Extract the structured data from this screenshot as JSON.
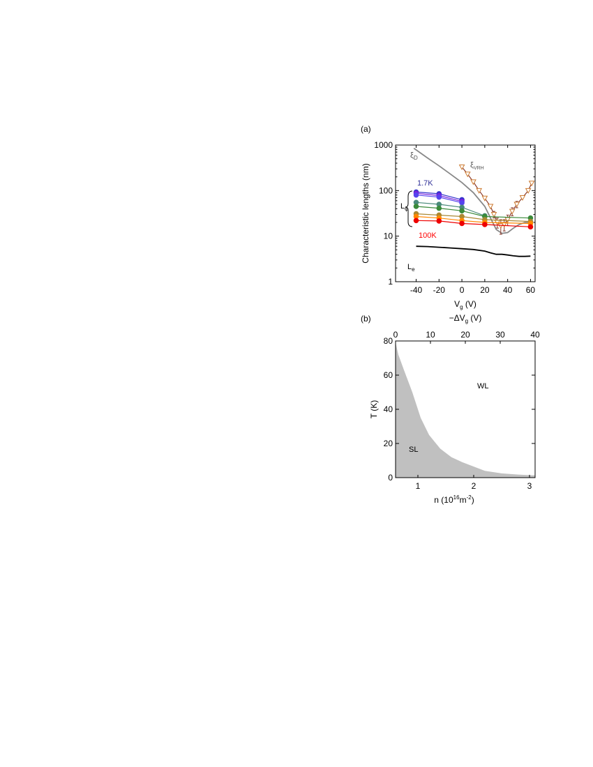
{
  "chart_data": [
    {
      "panel": "(a)",
      "type": "line",
      "title": "",
      "xlabel": "V",
      "xlabel_sub": "g",
      "xlabel_unit": " (V)",
      "ylabel": "Characteristic lengths (nm)",
      "xlim": [
        -58,
        64
      ],
      "ylim": [
        1,
        1000
      ],
      "yscale": "log",
      "xticks": [
        -40,
        -20,
        0,
        20,
        40,
        60
      ],
      "xtick_labels": [
        "-40",
        "-20",
        "0",
        "20",
        "40",
        "60"
      ],
      "yticks": [
        1,
        10,
        100,
        1000
      ],
      "ytick_labels": [
        "1",
        "10",
        "100",
        "1000"
      ],
      "grid": false,
      "annotations": {
        "xi_d": {
          "main": "ξ",
          "sub": "D"
        },
        "xi_vrh": {
          "main": "ξ",
          "sub": "VRH"
        },
        "l_phi": {
          "main": "L",
          "sub": "φ"
        },
        "l_e": {
          "main": "L",
          "sub": "e"
        },
        "t_low": "1.7K",
        "t_high": "100K"
      },
      "colors": {
        "t_low": "#333399",
        "t_high": "#ff0000",
        "xi_d": "#888888",
        "xi_vrh_line": "#8b3a2a",
        "xi_vrh_marker": "#cc7a30",
        "l_e": "#000000"
      },
      "series": [
        {
          "id": "xi_d",
          "style": "line",
          "color": "#888888",
          "x": [
            -42,
            -30,
            -20,
            -10,
            0,
            10,
            20,
            25,
            30,
            35,
            40,
            45,
            50,
            55,
            60
          ],
          "y": [
            850,
            520,
            350,
            230,
            150,
            90,
            45,
            25,
            14,
            11.5,
            12,
            15,
            18,
            20,
            20
          ]
        },
        {
          "id": "xi_vrh",
          "style": "line-marker",
          "color": "#8b3a2a",
          "marker": "triangle-down",
          "marker_color": "#cc7a30",
          "x": [
            0,
            5,
            10,
            15,
            20,
            25,
            28,
            31,
            34,
            37,
            40,
            44,
            48,
            53,
            58,
            61
          ],
          "y": [
            330,
            230,
            155,
            100,
            68,
            45,
            30,
            20,
            17,
            18,
            23,
            35,
            50,
            70,
            100,
            145
          ],
          "error": [
            0,
            0,
            0,
            0,
            0,
            0,
            5,
            5,
            6,
            5,
            6,
            7,
            8,
            0,
            0,
            0
          ]
        },
        {
          "id": "lphi_1",
          "style": "line-marker",
          "color": "#3333cc",
          "x": [
            -40,
            -20,
            0
          ],
          "y": [
            93,
            85,
            63
          ]
        },
        {
          "id": "lphi_2",
          "style": "line-marker",
          "color": "#7722dd",
          "x": [
            -40,
            -20,
            0
          ],
          "y": [
            87,
            78,
            58
          ]
        },
        {
          "id": "lphi_3",
          "style": "line-marker",
          "color": "#5544ee",
          "x": [
            -40,
            -20,
            0
          ],
          "y": [
            80,
            72,
            54
          ]
        },
        {
          "id": "lphi_4",
          "style": "line-marker",
          "color": "#4a8a7a",
          "x": [
            -40,
            -20,
            0,
            20
          ],
          "y": [
            55,
            50,
            43,
            28
          ]
        },
        {
          "id": "lphi_5",
          "style": "line-marker",
          "color": "#3a8a3a",
          "x": [
            -40,
            -20,
            0,
            20,
            60
          ],
          "y": [
            45,
            41,
            36,
            27,
            25
          ]
        },
        {
          "id": "lphi_6",
          "style": "line-marker",
          "color": "#aa8833",
          "x": [
            -40,
            -20,
            0,
            20,
            60
          ],
          "y": [
            31,
            29,
            27,
            23,
            21
          ]
        },
        {
          "id": "lphi_7",
          "style": "line-marker",
          "color": "#ff8800",
          "x": [
            -40,
            -20,
            0,
            20,
            60
          ],
          "y": [
            27,
            25,
            22,
            20,
            19
          ]
        },
        {
          "id": "lphi_8",
          "style": "line-marker",
          "color": "#ee0000",
          "x": [
            -40,
            -20,
            0,
            20,
            60
          ],
          "y": [
            22,
            21.5,
            19,
            18,
            16
          ]
        },
        {
          "id": "l_e",
          "style": "line",
          "color": "#000000",
          "x": [
            -40,
            -30,
            -20,
            -10,
            0,
            10,
            20,
            25,
            30,
            35,
            40,
            45,
            50,
            55,
            60
          ],
          "y": [
            6.0,
            5.9,
            5.7,
            5.5,
            5.3,
            5.1,
            4.7,
            4.3,
            4.0,
            4.0,
            3.85,
            3.7,
            3.6,
            3.6,
            3.65
          ]
        }
      ]
    },
    {
      "panel": "(b)",
      "type": "area",
      "title": "",
      "xlabel": "n (10",
      "xlabel_sup1": "16",
      "xlabel_mid": "m",
      "xlabel_sup2": "-2",
      "xlabel_end": ")",
      "ylabel": "T (K)",
      "top_xlabel_prefix": "−ΔV",
      "top_xlabel_sub": "g",
      "top_xlabel_unit": " (V)",
      "xlim": [
        0.6,
        3.1
      ],
      "ylim": [
        0,
        80
      ],
      "top_xlim": [
        0,
        40
      ],
      "xticks": [
        1,
        2,
        3
      ],
      "xtick_labels": [
        "1",
        "2",
        "3"
      ],
      "yticks": [
        0,
        20,
        40,
        60,
        80
      ],
      "ytick_labels": [
        "0",
        "20",
        "40",
        "60",
        "80"
      ],
      "top_xticks": [
        0,
        10,
        20,
        30,
        40
      ],
      "top_xtick_labels": [
        "0",
        "10",
        "20",
        "30",
        "40"
      ],
      "grid": false,
      "region_labels": {
        "upper": "WL",
        "lower": "SL"
      },
      "fill_color": "#c0c0c0",
      "boundary": {
        "x": [
          0.6,
          0.65,
          0.75,
          0.9,
          1.05,
          1.2,
          1.4,
          1.6,
          1.8,
          2.0,
          2.2,
          2.5,
          2.8,
          3.05
        ],
        "y": [
          79,
          72,
          63,
          50,
          35,
          25,
          17,
          12,
          9,
          6.5,
          4,
          2.5,
          1.8,
          1.4
        ]
      }
    }
  ]
}
